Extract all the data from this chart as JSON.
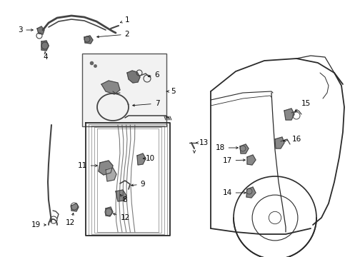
{
  "bg_color": "#ffffff",
  "line_color": "#2a2a2a",
  "part_color": "#444444",
  "label_color": "#000000",
  "label_fontsize": 7.0,
  "figsize": [
    4.9,
    3.6
  ],
  "dpi": 100
}
